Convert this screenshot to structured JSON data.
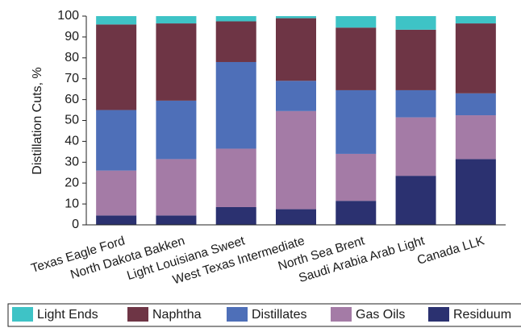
{
  "chart_data": {
    "type": "bar",
    "stacked": true,
    "title": "",
    "xlabel": "",
    "ylabel": "Distillation Cuts, %",
    "ylim": [
      0,
      100
    ],
    "yticks": [
      0,
      10,
      20,
      30,
      40,
      50,
      60,
      70,
      80,
      90,
      100
    ],
    "grid": false,
    "legend_position": "bottom",
    "categories": [
      "Texas Eagle Ford",
      "North Dakota Bakken",
      "Light Louisiana Sweet",
      "West Texas Intermediate",
      "North Sea Brent",
      "Saudi Arabia Arab Light",
      "Canada LLK"
    ],
    "series": [
      {
        "name": "Residuum",
        "color": "#2b3170",
        "values": [
          4.5,
          4.5,
          8.5,
          7.5,
          11.5,
          23.5,
          31.5
        ]
      },
      {
        "name": "Gas Oils",
        "color": "#a47ba6",
        "values": [
          21.5,
          27.0,
          28.0,
          47.0,
          22.5,
          28.0,
          21.0
        ]
      },
      {
        "name": "Distillates",
        "color": "#4e6fb8",
        "values": [
          29.0,
          28.0,
          41.5,
          14.5,
          30.5,
          13.0,
          10.5
        ]
      },
      {
        "name": "Naphtha",
        "color": "#6e3545",
        "values": [
          41.0,
          37.0,
          19.5,
          30.0,
          30.0,
          29.0,
          33.5
        ]
      },
      {
        "name": "Light Ends",
        "color": "#3ec3c6",
        "values": [
          4.0,
          3.5,
          2.5,
          1.0,
          5.5,
          6.5,
          3.5
        ]
      }
    ],
    "legend_order": [
      "Light Ends",
      "Naphtha",
      "Distillates",
      "Gas Oils",
      "Residuum"
    ]
  }
}
